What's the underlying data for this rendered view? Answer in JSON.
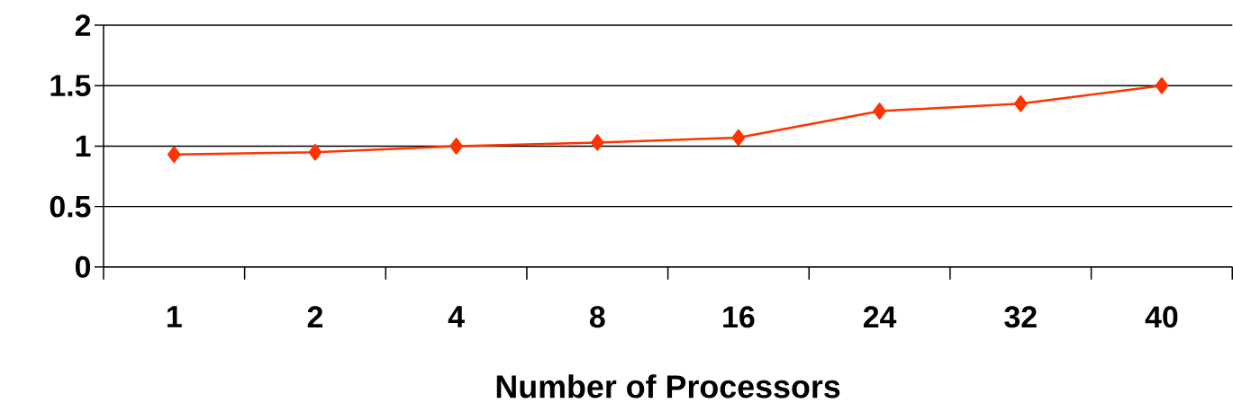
{
  "chart_data": {
    "type": "line",
    "xlabel": "Number of Processors",
    "categories": [
      "1",
      "2",
      "4",
      "8",
      "16",
      "24",
      "32",
      "40"
    ],
    "series": [
      {
        "color": "#ff3300",
        "values": [
          0.93,
          0.95,
          1.0,
          1.03,
          1.07,
          1.29,
          1.35,
          1.5
        ]
      }
    ],
    "ylim": [
      0,
      2
    ],
    "yticks": [
      0,
      0.5,
      1,
      1.5,
      2
    ],
    "grid": "y",
    "marker": "diamond",
    "line_style": "solid"
  }
}
